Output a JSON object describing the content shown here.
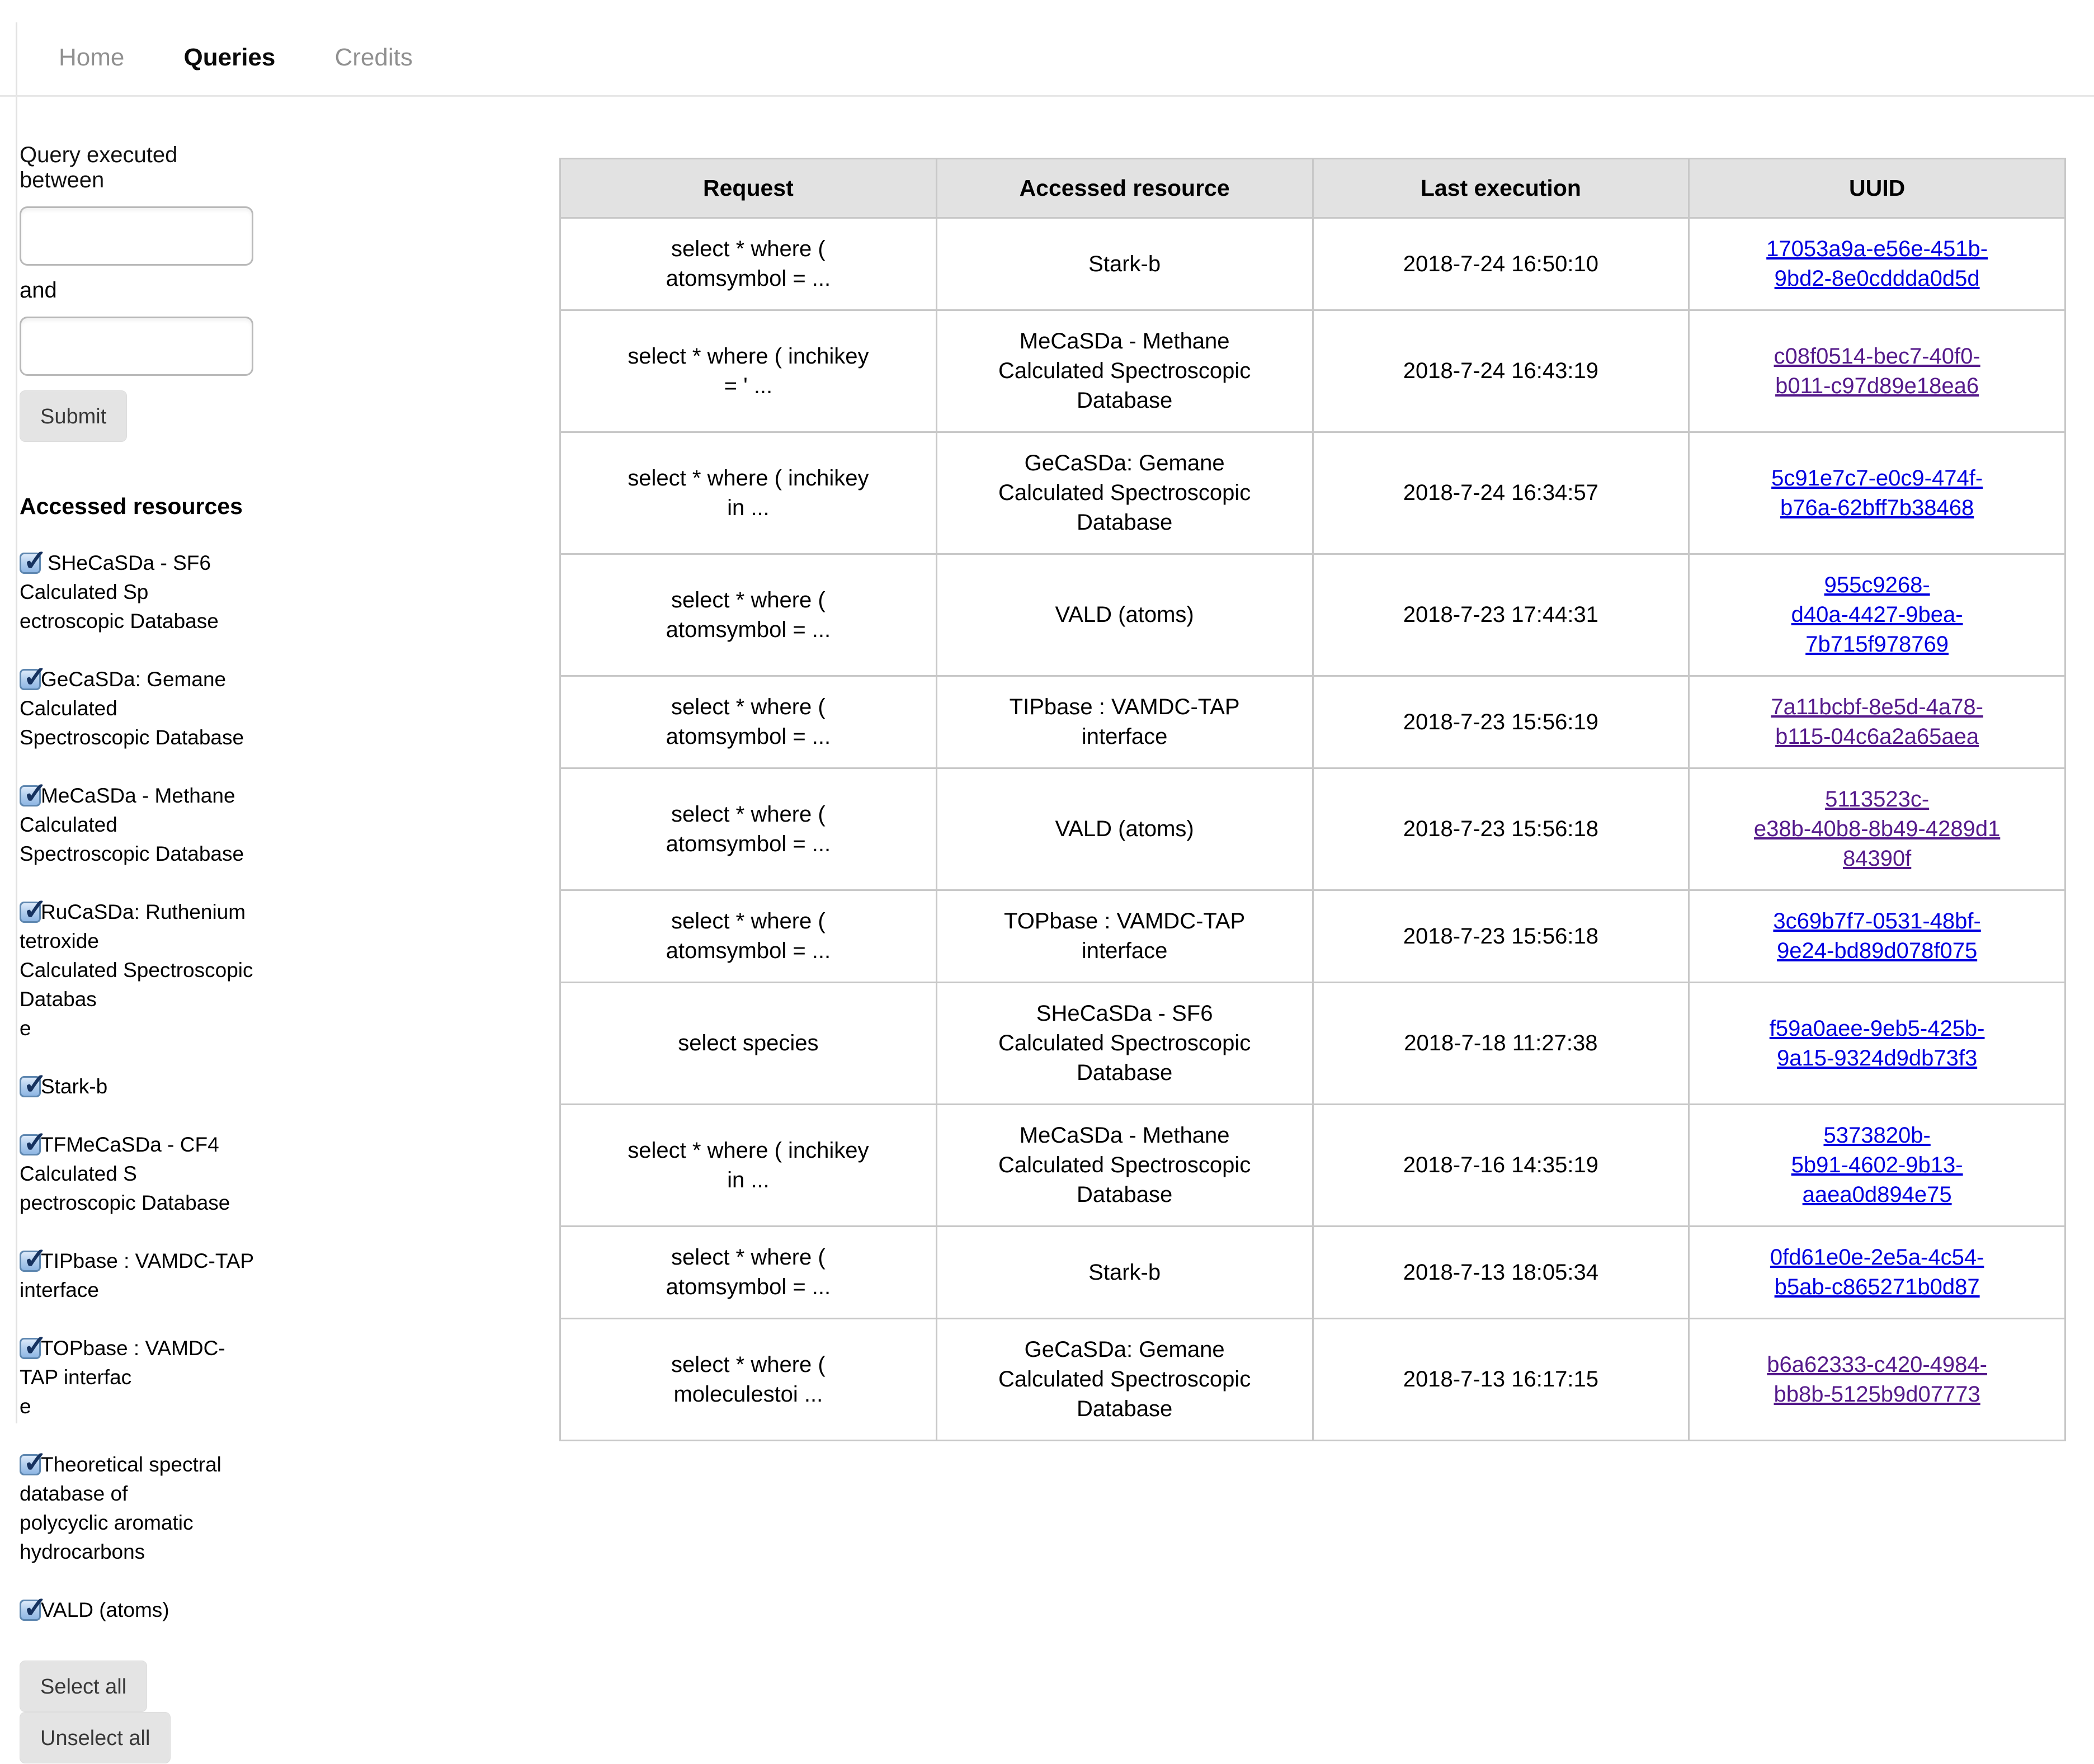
{
  "nav": {
    "items": [
      {
        "label": "Home",
        "active": false
      },
      {
        "label": "Queries",
        "active": true
      },
      {
        "label": "Credits",
        "active": false
      }
    ]
  },
  "sidebar": {
    "form": {
      "label": "Query executed between",
      "and_label": "and",
      "from_value": "",
      "to_value": "",
      "submit_label": "Submit"
    },
    "resources": {
      "heading": "Accessed resources",
      "items": [
        {
          "label": "SHeCaSDa - SF6 Calculated Sp\nectroscopic Database",
          "checked": true
        },
        {
          "label": "GeCaSDa: Gemane Calculated\nSpectroscopic Database",
          "checked": true
        },
        {
          "label": "MeCaSDa - Methane Calculated\nSpectroscopic Database",
          "checked": true
        },
        {
          "label": "RuCaSDa: Ruthenium tetroxide\nCalculated Spectroscopic Databas\ne",
          "checked": true
        },
        {
          "label": "Stark-b",
          "checked": true
        },
        {
          "label": "TFMeCaSDa - CF4 Calculated S\npectroscopic Database",
          "checked": true
        },
        {
          "label": "TIPbase : VAMDC-TAP interface",
          "checked": true
        },
        {
          "label": "TOPbase : VAMDC-TAP interfac\ne",
          "checked": true
        },
        {
          "label": "Theoretical spectral database of\npolycyclic aromatic hydrocarbons",
          "checked": true
        },
        {
          "label": "VALD (atoms)",
          "checked": true
        }
      ],
      "select_all_label": "Select all",
      "unselect_all_label": "Unselect all"
    }
  },
  "table": {
    "headers": [
      "Request",
      "Accessed resource",
      "Last execution",
      "UUID"
    ],
    "rows": [
      {
        "request": "select * where (\natomsymbol = ...",
        "resource": "Stark-b",
        "last_execution": "2018-7-24 16:50:10",
        "uuid": "17053a9a-e56e-451b-\n9bd2-8e0cddda0d5d",
        "visited": false
      },
      {
        "request": "select * where ( inchikey\n= ' ...",
        "resource": "MeCaSDa - Methane\nCalculated Spectroscopic\nDatabase",
        "last_execution": "2018-7-24 16:43:19",
        "uuid": "c08f0514-bec7-40f0-\nb011-c97d89e18ea6",
        "visited": true
      },
      {
        "request": "select * where ( inchikey\nin ...",
        "resource": "GeCaSDa: Gemane\nCalculated Spectroscopic\nDatabase",
        "last_execution": "2018-7-24 16:34:57",
        "uuid": "5c91e7c7-e0c9-474f-\nb76a-62bff7b38468",
        "visited": false
      },
      {
        "request": "select * where (\natomsymbol = ...",
        "resource": "VALD (atoms)",
        "last_execution": "2018-7-23 17:44:31",
        "uuid": "955c9268-\nd40a-4427-9bea-\n7b715f978769",
        "visited": false
      },
      {
        "request": "select * where (\natomsymbol = ...",
        "resource": "TIPbase : VAMDC-TAP\ninterface",
        "last_execution": "2018-7-23 15:56:19",
        "uuid": "7a11bcbf-8e5d-4a78-\nb115-04c6a2a65aea",
        "visited": true
      },
      {
        "request": "select * where (\natomsymbol = ...",
        "resource": "VALD (atoms)",
        "last_execution": "2018-7-23 15:56:18",
        "uuid": "5113523c-\ne38b-40b8-8b49-4289d1\n84390f",
        "visited": true
      },
      {
        "request": "select * where (\natomsymbol = ...",
        "resource": "TOPbase : VAMDC-TAP\ninterface",
        "last_execution": "2018-7-23 15:56:18",
        "uuid": "3c69b7f7-0531-48bf-\n9e24-bd89d078f075",
        "visited": false
      },
      {
        "request": "select species",
        "resource": "SHeCaSDa - SF6\nCalculated Spectroscopic\nDatabase",
        "last_execution": "2018-7-18 11:27:38",
        "uuid": "f59a0aee-9eb5-425b-\n9a15-9324d9db73f3",
        "visited": false
      },
      {
        "request": "select * where ( inchikey\nin ...",
        "resource": "MeCaSDa - Methane\nCalculated Spectroscopic\nDatabase",
        "last_execution": "2018-7-16 14:35:19",
        "uuid": "5373820b-\n5b91-4602-9b13-\naaea0d894e75",
        "visited": false
      },
      {
        "request": "select * where (\natomsymbol = ...",
        "resource": "Stark-b",
        "last_execution": "2018-7-13 18:05:34",
        "uuid": "0fd61e0e-2e5a-4c54-\nb5ab-c865271b0d87",
        "visited": false
      },
      {
        "request": "select * where (\nmoleculestoi ...",
        "resource": "GeCaSDa: Gemane\nCalculated Spectroscopic\nDatabase",
        "last_execution": "2018-7-13 16:17:15",
        "uuid": "b6a62333-c420-4984-\nbb8b-5125b9d07773",
        "visited": true
      }
    ]
  },
  "colors": {
    "link_blue": "#0000e0",
    "link_visited": "#551a8b",
    "header_bg": "#e2e2e2",
    "table_border": "#c8c8c8",
    "checkbox_blue": "#8fb7e4"
  }
}
